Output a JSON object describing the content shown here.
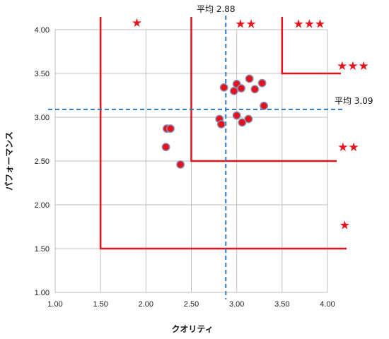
{
  "chart_data": {
    "type": "scatter",
    "title": "",
    "xlabel": "クオリティ",
    "ylabel": "パフォーマンス",
    "xlim": [
      1.0,
      4.0
    ],
    "ylim": [
      1.0,
      4.0
    ],
    "x_ticks": [
      "1.00",
      "1.50",
      "2.00",
      "2.50",
      "3.00",
      "3.50",
      "4.00"
    ],
    "y_ticks": [
      "1.00",
      "1.50",
      "2.00",
      "2.50",
      "3.00",
      "3.50",
      "4.00"
    ],
    "grid": true,
    "points": [
      {
        "x": 2.23,
        "y": 2.87
      },
      {
        "x": 2.27,
        "y": 2.87
      },
      {
        "x": 2.22,
        "y": 2.66
      },
      {
        "x": 2.38,
        "y": 2.46
      },
      {
        "x": 2.81,
        "y": 2.98
      },
      {
        "x": 2.83,
        "y": 2.92
      },
      {
        "x": 2.86,
        "y": 3.34
      },
      {
        "x": 2.97,
        "y": 3.3
      },
      {
        "x": 3.0,
        "y": 3.38
      },
      {
        "x": 3.05,
        "y": 3.33
      },
      {
        "x": 3.14,
        "y": 3.44
      },
      {
        "x": 3.2,
        "y": 3.32
      },
      {
        "x": 3.28,
        "y": 3.39
      },
      {
        "x": 3.0,
        "y": 3.02
      },
      {
        "x": 3.06,
        "y": 2.94
      },
      {
        "x": 3.13,
        "y": 2.98
      },
      {
        "x": 3.3,
        "y": 3.13
      }
    ],
    "averages": {
      "x": 2.88,
      "y": 3.09,
      "x_label": "平均 2.88",
      "y_label": "平均 3.09"
    },
    "zones": [
      {
        "x": 1.5,
        "y": 1.5
      },
      {
        "x": 2.5,
        "y": 2.5
      },
      {
        "x": 3.5,
        "y": 3.5
      }
    ],
    "star_labels": [
      {
        "text": "★",
        "x": 1.9,
        "y": 4.08
      },
      {
        "text": "★★",
        "x": 3.1,
        "y": 4.07
      },
      {
        "text": "★★★",
        "x": 3.8,
        "y": 4.07
      },
      {
        "text": "★★★",
        "x": 4.28,
        "y": 3.59
      },
      {
        "text": "★★",
        "x": 4.23,
        "y": 2.66
      },
      {
        "text": "★",
        "x": 4.19,
        "y": 1.77
      }
    ],
    "colors": {
      "point_fill": "#e3121b",
      "point_stroke": "#8a8fb8",
      "zone_line": "#e3121b",
      "average_line": "#2e75b6",
      "grid": "#bfbfbf"
    }
  }
}
